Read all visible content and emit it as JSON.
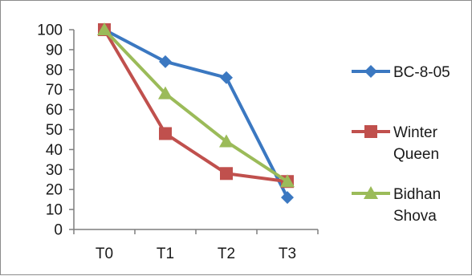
{
  "chart_data": {
    "type": "line",
    "categories": [
      "T0",
      "T1",
      "T2",
      "T3"
    ],
    "ylim": [
      0,
      100
    ],
    "yticks": [
      0,
      10,
      20,
      30,
      40,
      50,
      60,
      70,
      80,
      90,
      100
    ],
    "grid": false,
    "legend_position": "right",
    "series": [
      {
        "name": "BC-8-05",
        "name_lines": [
          "BC-8-05"
        ],
        "values": [
          100,
          84,
          76,
          16
        ],
        "color": "#3b78c1",
        "marker": "diamond"
      },
      {
        "name": "Winter Queen",
        "name_lines": [
          "Winter",
          "Queen"
        ],
        "values": [
          100,
          48,
          28,
          24
        ],
        "color": "#c0504d",
        "marker": "square"
      },
      {
        "name": "Bidhan Shova",
        "name_lines": [
          "Bidhan",
          "Shova"
        ],
        "values": [
          100,
          68,
          44,
          24
        ],
        "color": "#9bbb59",
        "marker": "triangle"
      }
    ]
  }
}
